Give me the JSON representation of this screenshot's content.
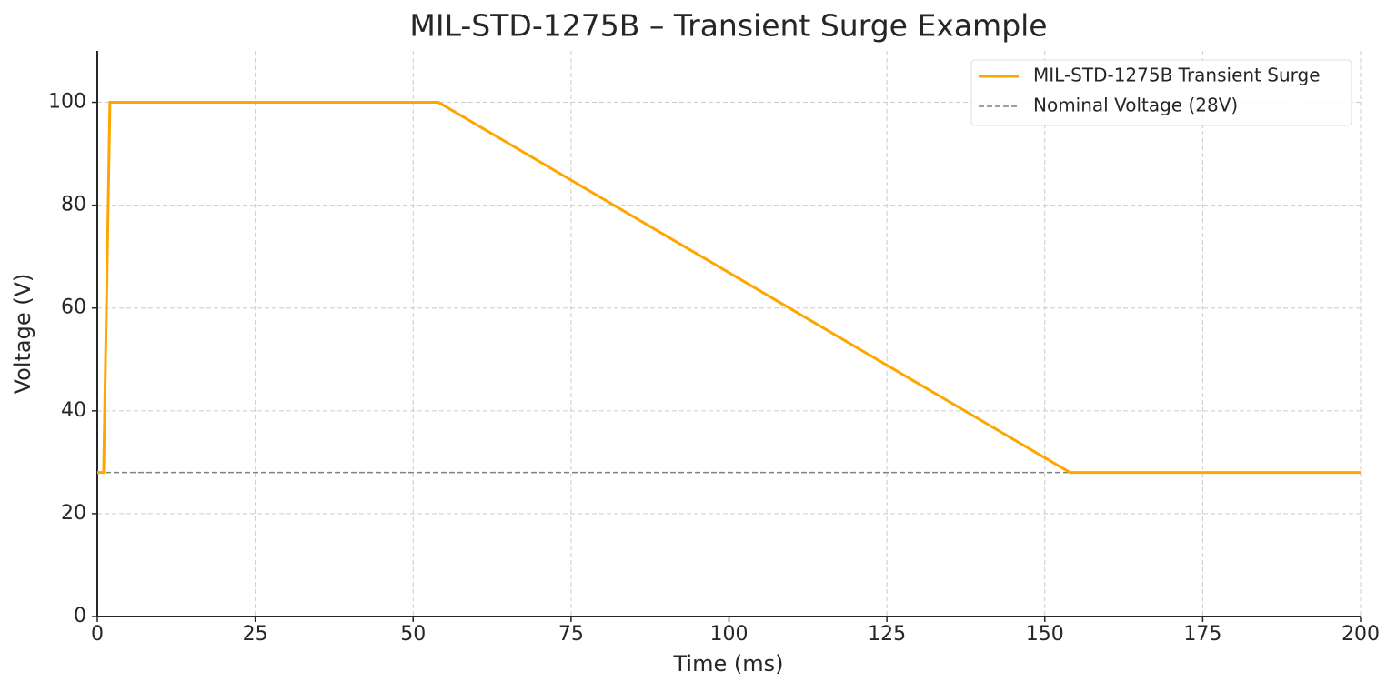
{
  "chart_data": {
    "type": "line",
    "title": "MIL-STD-1275B – Transient Surge Example",
    "x_label": "Time (ms)",
    "y_label": "Voltage (V)",
    "series": [
      {
        "name": "MIL-STD-1275B Transient Surge",
        "color": "#ffa500",
        "dashed": false,
        "x": [
          0,
          1,
          2,
          54,
          154,
          200
        ],
        "values": [
          28,
          28,
          100,
          100,
          28,
          28
        ]
      },
      {
        "name": "Nominal Voltage (28V)",
        "color": "#808080",
        "dashed": true,
        "x": [
          0,
          200
        ],
        "values": [
          28,
          28
        ]
      }
    ],
    "xlim": [
      0,
      200
    ],
    "xticks": [
      0,
      25,
      50,
      75,
      100,
      125,
      150,
      175,
      200
    ],
    "ylim": [
      0,
      110
    ],
    "yticks": [
      0,
      20,
      40,
      60,
      80,
      100
    ],
    "grid": true,
    "legend": "upper right"
  }
}
